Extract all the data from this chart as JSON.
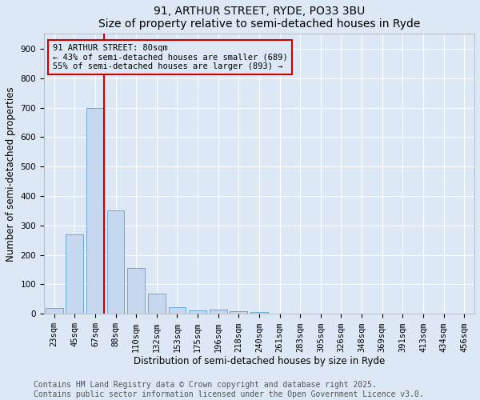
{
  "title": "91, ARTHUR STREET, RYDE, PO33 3BU",
  "subtitle": "Size of property relative to semi-detached houses in Ryde",
  "xlabel": "Distribution of semi-detached houses by size in Ryde",
  "ylabel": "Number of semi-detached properties",
  "footnote1": "Contains HM Land Registry data © Crown copyright and database right 2025.",
  "footnote2": "Contains public sector information licensed under the Open Government Licence v3.0.",
  "bar_labels": [
    "23sqm",
    "45sqm",
    "67sqm",
    "88sqm",
    "110sqm",
    "132sqm",
    "153sqm",
    "175sqm",
    "196sqm",
    "218sqm",
    "240sqm",
    "261sqm",
    "283sqm",
    "305sqm",
    "326sqm",
    "348sqm",
    "369sqm",
    "391sqm",
    "413sqm",
    "434sqm",
    "456sqm"
  ],
  "bar_values": [
    20,
    270,
    700,
    350,
    155,
    68,
    22,
    12,
    15,
    10,
    5,
    0,
    0,
    0,
    0,
    0,
    0,
    0,
    0,
    0,
    0
  ],
  "bar_color": "#c5d8ef",
  "bar_edge_color": "#6aaad4",
  "background_color": "#dce8f5",
  "vline_color": "#cc0000",
  "vline_x": 2.42,
  "annotation_line1": "91 ARTHUR STREET: 80sqm",
  "annotation_line2": "← 43% of semi-detached houses are smaller (689)",
  "annotation_line3": "55% of semi-detached houses are larger (893) →",
  "annotation_box_color": "#cc0000",
  "ylim": [
    0,
    950
  ],
  "yticks": [
    0,
    100,
    200,
    300,
    400,
    500,
    600,
    700,
    800,
    900
  ],
  "grid_color": "#ffffff",
  "title_fontsize": 10,
  "axis_fontsize": 8.5,
  "tick_fontsize": 7.5,
  "annotation_fontsize": 7.5,
  "footnote_fontsize": 7
}
